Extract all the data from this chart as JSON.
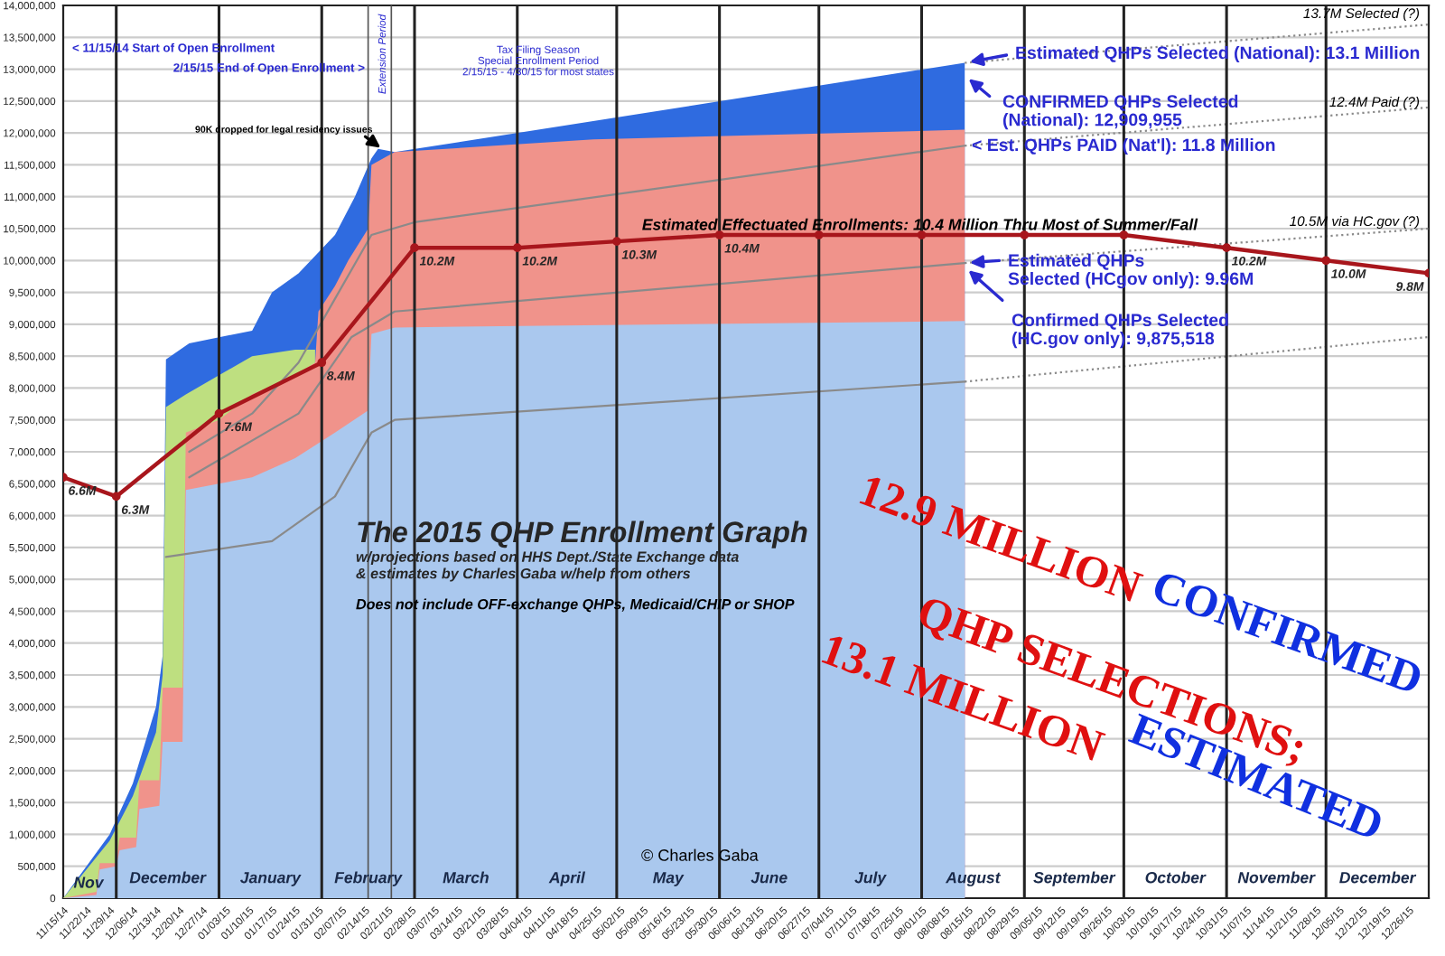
{
  "chart_data": {
    "type": "area",
    "title": "The 2015 QHP Enrollment Graph",
    "subtitle": "w/projections based on HHS Dept./State Exchange data\n& estimates by Charles Gaba w/help from others",
    "xlim": [
      "2014-11-15",
      "2016-01-01"
    ],
    "xticks": [
      {
        "value": "2014-11-15",
        "label": "11/15/14"
      },
      {
        "value": "2014-11-22",
        "label": "11/22/14"
      },
      {
        "value": "2014-11-29",
        "label": "11/29/14"
      },
      {
        "value": "2014-12-06",
        "label": "12/06/14"
      },
      {
        "value": "2014-12-13",
        "label": "12/13/14"
      },
      {
        "value": "2014-12-20",
        "label": "12/20/14"
      },
      {
        "value": "2014-12-27",
        "label": "12/27/14"
      },
      {
        "value": "2015-01-03",
        "label": "01/03/15"
      },
      {
        "value": "2015-01-10",
        "label": "01/10/15"
      },
      {
        "value": "2015-01-17",
        "label": "01/17/15"
      },
      {
        "value": "2015-01-24",
        "label": "01/24/15"
      },
      {
        "value": "2015-01-31",
        "label": "01/31/15"
      },
      {
        "value": "2015-02-07",
        "label": "02/07/15"
      },
      {
        "value": "2015-02-14",
        "label": "02/14/15"
      },
      {
        "value": "2015-02-21",
        "label": "02/21/15"
      },
      {
        "value": "2015-02-28",
        "label": "02/28/15"
      },
      {
        "value": "2015-03-07",
        "label": "03/07/15"
      },
      {
        "value": "2015-03-14",
        "label": "03/14/15"
      },
      {
        "value": "2015-03-21",
        "label": "03/21/15"
      },
      {
        "value": "2015-03-28",
        "label": "03/28/15"
      },
      {
        "value": "2015-04-04",
        "label": "04/04/15"
      },
      {
        "value": "2015-04-11",
        "label": "04/11/15"
      },
      {
        "value": "2015-04-18",
        "label": "04/18/15"
      },
      {
        "value": "2015-04-25",
        "label": "04/25/15"
      },
      {
        "value": "2015-05-02",
        "label": "05/02/15"
      },
      {
        "value": "2015-05-09",
        "label": "05/09/15"
      },
      {
        "value": "2015-05-16",
        "label": "05/16/15"
      },
      {
        "value": "2015-05-23",
        "label": "05/23/15"
      },
      {
        "value": "2015-05-30",
        "label": "05/30/15"
      },
      {
        "value": "2015-06-06",
        "label": "06/06/15"
      },
      {
        "value": "2015-06-13",
        "label": "06/13/15"
      },
      {
        "value": "2015-06-20",
        "label": "06/20/15"
      },
      {
        "value": "2015-06-27",
        "label": "06/27/15"
      },
      {
        "value": "2015-07-04",
        "label": "07/04/15"
      },
      {
        "value": "2015-07-11",
        "label": "07/11/15"
      },
      {
        "value": "2015-07-18",
        "label": "07/18/15"
      },
      {
        "value": "2015-07-25",
        "label": "07/25/15"
      },
      {
        "value": "2015-08-01",
        "label": "08/01/15"
      },
      {
        "value": "2015-08-08",
        "label": "08/08/15"
      },
      {
        "value": "2015-08-15",
        "label": "08/15/15"
      },
      {
        "value": "2015-08-22",
        "label": "08/22/15"
      },
      {
        "value": "2015-08-29",
        "label": "08/29/15"
      },
      {
        "value": "2015-09-05",
        "label": "09/05/15"
      },
      {
        "value": "2015-09-12",
        "label": "09/12/15"
      },
      {
        "value": "2015-09-19",
        "label": "09/19/15"
      },
      {
        "value": "2015-09-26",
        "label": "09/26/15"
      },
      {
        "value": "2015-10-03",
        "label": "10/03/15"
      },
      {
        "value": "2015-10-10",
        "label": "10/10/15"
      },
      {
        "value": "2015-10-17",
        "label": "10/17/15"
      },
      {
        "value": "2015-10-24",
        "label": "10/24/15"
      },
      {
        "value": "2015-10-31",
        "label": "10/31/15"
      },
      {
        "value": "2015-11-07",
        "label": "11/07/15"
      },
      {
        "value": "2015-11-14",
        "label": "11/14/15"
      },
      {
        "value": "2015-11-21",
        "label": "11/21/15"
      },
      {
        "value": "2015-11-28",
        "label": "11/28/15"
      },
      {
        "value": "2015-12-05",
        "label": "12/05/15"
      },
      {
        "value": "2015-12-12",
        "label": "12/12/15"
      },
      {
        "value": "2015-12-19",
        "label": "12/19/15"
      },
      {
        "value": "2015-12-26",
        "label": "12/26/15"
      }
    ],
    "ylim": [
      0,
      14000000
    ],
    "yticks": [
      {
        "value": 0,
        "label": "0"
      },
      {
        "value": 500000,
        "label": "500,000"
      },
      {
        "value": 1000000,
        "label": "1,000,000"
      },
      {
        "value": 1500000,
        "label": "1,500,000"
      },
      {
        "value": 2000000,
        "label": "2,000,000"
      },
      {
        "value": 2500000,
        "label": "2,500,000"
      },
      {
        "value": 3000000,
        "label": "3,000,000"
      },
      {
        "value": 3500000,
        "label": "3,500,000"
      },
      {
        "value": 4000000,
        "label": "4,000,000"
      },
      {
        "value": 4500000,
        "label": "4,500,000"
      },
      {
        "value": 5000000,
        "label": "5,000,000"
      },
      {
        "value": 5500000,
        "label": "5,500,000"
      },
      {
        "value": 6000000,
        "label": "6,000,000"
      },
      {
        "value": 6500000,
        "label": "6,500,000"
      },
      {
        "value": 7000000,
        "label": "7,000,000"
      },
      {
        "value": 7500000,
        "label": "7,500,000"
      },
      {
        "value": 8000000,
        "label": "8,000,000"
      },
      {
        "value": 8500000,
        "label": "8,500,000"
      },
      {
        "value": 9000000,
        "label": "9,000,000"
      },
      {
        "value": 9500000,
        "label": "9,500,000"
      },
      {
        "value": 10000000,
        "label": "10,000,000"
      },
      {
        "value": 10500000,
        "label": "10,500,000"
      },
      {
        "value": 11000000,
        "label": "11,000,000"
      },
      {
        "value": 11500000,
        "label": "11,500,000"
      },
      {
        "value": 12000000,
        "label": "12,000,000"
      },
      {
        "value": 12500000,
        "label": "12,500,000"
      },
      {
        "value": 13000000,
        "label": "13,000,000"
      },
      {
        "value": 13500000,
        "label": "13,500,000"
      },
      {
        "value": 14000000,
        "label": "14,000,000"
      }
    ],
    "grid": "y",
    "series": [
      {
        "color": "#2f6be0",
        "x": [
          "2014-11-15",
          "2014-11-22",
          "2014-11-29",
          "2014-12-06",
          "2014-12-13",
          "2014-12-15",
          "2014-12-16",
          "2014-12-23",
          "2015-01-11",
          "2015-01-17",
          "2015-01-25",
          "2015-02-05",
          "2015-02-11",
          "2015-02-16",
          "2015-02-18",
          "2015-02-23",
          "2015-08-14"
        ],
        "values": [
          0,
          500000,
          1000000,
          1800000,
          3000000,
          3800000,
          8450000,
          8700000,
          8900000,
          9500000,
          9800000,
          10400000,
          11000000,
          11600000,
          11750000,
          11700000,
          13100000
        ]
      },
      {
        "color": "#bedf80",
        "x": [
          "2014-11-15",
          "2014-11-29",
          "2014-12-06",
          "2014-12-13",
          "2014-12-15",
          "2014-12-16",
          "2014-12-22",
          "2015-01-01",
          "2015-01-11",
          "2015-01-24",
          "2015-01-30"
        ],
        "values": [
          0,
          900000,
          1600000,
          2600000,
          3500000,
          7700000,
          7900000,
          8200000,
          8500000,
          8600000,
          8600000
        ]
      },
      {
        "color": "#f0938b",
        "x": [
          "2014-11-15",
          "2014-11-25",
          "2014-11-26",
          "2014-12-01",
          "2014-12-02",
          "2014-12-07",
          "2014-12-08",
          "2014-12-14",
          "2014-12-15",
          "2014-12-21",
          "2014-12-22",
          "2015-01-01",
          "2015-01-11",
          "2015-01-24",
          "2015-01-30",
          "2015-01-31",
          "2015-02-05",
          "2015-02-09",
          "2015-02-15",
          "2015-02-16",
          "2015-02-23",
          "2015-04-24",
          "2015-08-14"
        ],
        "values": [
          0,
          100000,
          550000,
          550000,
          950000,
          950000,
          1850000,
          1850000,
          3300000,
          3300000,
          7300000,
          7500000,
          7900000,
          8200000,
          8400000,
          9200000,
          9600000,
          10000000,
          10500000,
          11500000,
          11700000,
          11900000,
          12050000
        ]
      },
      {
        "color": "#aac8ee",
        "x": [
          "2014-11-15",
          "2014-11-25",
          "2014-11-26",
          "2014-12-01",
          "2014-12-02",
          "2014-12-07",
          "2014-12-08",
          "2014-12-14",
          "2014-12-15",
          "2014-12-21",
          "2014-12-22",
          "2015-01-01",
          "2015-01-11",
          "2015-01-24",
          "2015-02-05",
          "2015-02-15",
          "2015-02-16",
          "2015-02-23",
          "2015-08-14"
        ],
        "values": [
          0,
          50000,
          450000,
          500000,
          750000,
          800000,
          1400000,
          1450000,
          2450000,
          2450000,
          6400000,
          6500000,
          6600000,
          6900000,
          7300000,
          7650000,
          8850000,
          8950000,
          9050000
        ]
      },
      {
        "type": "line",
        "color": "#8a8a8a",
        "line_style": "solid",
        "x": [
          "2014-12-23",
          "2015-01-11",
          "2015-01-25",
          "2015-02-05",
          "2015-02-16",
          "2015-03-01",
          "2015-08-14"
        ],
        "values": [
          7000000,
          7600000,
          8400000,
          9400000,
          10400000,
          10600000,
          11800000
        ]
      },
      {
        "type": "line",
        "color": "#8a8a8a",
        "line_style": "dotted",
        "x": [
          "2015-08-14",
          "2016-01-01"
        ],
        "values": [
          11800000,
          12400000
        ]
      },
      {
        "type": "line",
        "color": "#8a8a8a",
        "line_style": "solid",
        "x": [
          "2014-12-23",
          "2015-01-25",
          "2015-02-10",
          "2015-02-23",
          "2015-08-14"
        ],
        "values": [
          6600000,
          7600000,
          8800000,
          9200000,
          9960000
        ]
      },
      {
        "type": "line",
        "color": "#8a8a8a",
        "line_style": "dotted",
        "x": [
          "2015-08-14",
          "2016-01-01"
        ],
        "values": [
          9960000,
          10500000
        ]
      },
      {
        "type": "line",
        "color": "#8a8a8a",
        "line_style": "solid",
        "x": [
          "2014-12-16",
          "2015-01-17",
          "2015-02-05",
          "2015-02-16",
          "2015-02-23",
          "2015-08-14"
        ],
        "values": [
          5350000,
          5600000,
          6300000,
          7300000,
          7500000,
          8100000
        ]
      },
      {
        "type": "line",
        "color": "#8a8a8a",
        "line_style": "dotted",
        "x": [
          "2015-08-14",
          "2016-01-01"
        ],
        "values": [
          8100000,
          8800000
        ]
      },
      {
        "type": "line",
        "color": "#8a8a8a",
        "line_style": "dotted",
        "x": [
          "2015-08-14",
          "2016-01-01"
        ],
        "values": [
          13100000,
          13700000
        ]
      },
      {
        "type": "line",
        "color": "#a8161c",
        "line_style": "solid",
        "marker": "circle",
        "x": [
          "2014-11-15",
          "2014-12-01",
          "2015-01-01",
          "2015-02-01",
          "2015-03-01",
          "2015-04-01",
          "2015-05-01",
          "2015-06-01",
          "2015-07-01",
          "2015-08-01",
          "2015-09-01",
          "2015-10-01",
          "2015-11-01",
          "2015-12-01",
          "2016-01-01"
        ],
        "values": [
          6600000,
          6300000,
          7600000,
          8400000,
          10200000,
          10200000,
          10300000,
          10400000,
          10400000,
          10400000,
          10400000,
          10400000,
          10200000,
          10000000,
          9800000
        ],
        "value_labels": [
          "6.6M",
          "6.3M",
          "7.6M",
          "8.4M",
          "10.2M",
          "10.2M",
          "10.3M",
          "10.4M",
          null,
          null,
          null,
          null,
          "10.2M",
          "10.0M",
          "9.8M"
        ]
      }
    ],
    "ref_lines": [
      {
        "axis": "x",
        "value": "2014-12-01",
        "label": "December",
        "color": "#222222"
      },
      {
        "axis": "x",
        "value": "2015-01-01",
        "label": "January",
        "color": "#222222"
      },
      {
        "axis": "x",
        "value": "2015-02-01",
        "label": "February",
        "color": "#222222"
      },
      {
        "axis": "x",
        "value": "2015-02-15",
        "color": "#555555"
      },
      {
        "axis": "x",
        "value": "2015-02-22",
        "color": "#555555"
      },
      {
        "axis": "x",
        "value": "2015-03-01",
        "label": "March",
        "color": "#222222"
      },
      {
        "axis": "x",
        "value": "2015-04-01",
        "label": "April",
        "color": "#222222"
      },
      {
        "axis": "x",
        "value": "2015-05-01",
        "label": "May",
        "color": "#222222"
      },
      {
        "axis": "x",
        "value": "2015-06-01",
        "label": "June",
        "color": "#222222"
      },
      {
        "axis": "x",
        "value": "2015-07-01",
        "label": "July",
        "color": "#222222"
      },
      {
        "axis": "x",
        "value": "2015-08-01",
        "label": "August",
        "color": "#222222"
      },
      {
        "axis": "x",
        "value": "2015-09-01",
        "label": "September",
        "color": "#222222"
      },
      {
        "axis": "x",
        "value": "2015-10-01",
        "label": "October",
        "color": "#222222"
      },
      {
        "axis": "x",
        "value": "2015-11-01",
        "label": "November",
        "color": "#222222"
      },
      {
        "axis": "x",
        "value": "2015-12-01",
        "label": "December",
        "color": "#222222"
      }
    ],
    "annotations": [
      "Nov",
      "< 11/15/14 Start of Open Enrollment",
      "2/15/15 End of Open Enrollment >",
      "Extension Period",
      "Tax Filing Season\nSpecial Enrollment Period\n2/15/15 - 4/30/15 for most states",
      {
        "text": "90K dropped for legal residency issues",
        "x": "2015-02-20",
        "y": 11720000
      },
      {
        "text": "Estimated QHPs Selected (National): 13.1 Million",
        "x": "2015-08-14",
        "y": 13100000
      },
      {
        "text": "CONFIRMED QHPs Selected\n(National): 12,909,955",
        "x": "2015-08-14",
        "y": 12900000
      },
      {
        "text": "< Est. QHPs PAID (Nat'l): 11.8 Million",
        "x": "2015-08-14",
        "y": 11800000
      },
      "Estimated Effectuated Enrollments: 10.4 Million Thru Most of Summer/Fall",
      {
        "text": "Estimated QHPs\nSelected (HCgov only): 9.96M",
        "x": "2015-08-14",
        "y": 9960000
      },
      {
        "text": "Confirmed QHPs Selected\n(HC.gov only): 9,875,518",
        "x": "2015-08-14",
        "y": 9900000
      },
      {
        "text": "13.7M Selected (?)",
        "x": "2016-01-01",
        "y": 13700000
      },
      {
        "text": "12.4M Paid (?)",
        "x": "2016-01-01",
        "y": 12400000
      },
      {
        "text": "10.5M via HC.gov (?)",
        "x": "2016-01-01",
        "y": 10500000
      },
      "Does not include OFF-exchange QHPs, Medicaid/CHIP or SHOP",
      "© Charles Gaba",
      "12.9 MILLION",
      "CONFIRMED",
      "QHP SELECTIONS;",
      "13.1 MILLION",
      "ESTIMATED"
    ]
  }
}
